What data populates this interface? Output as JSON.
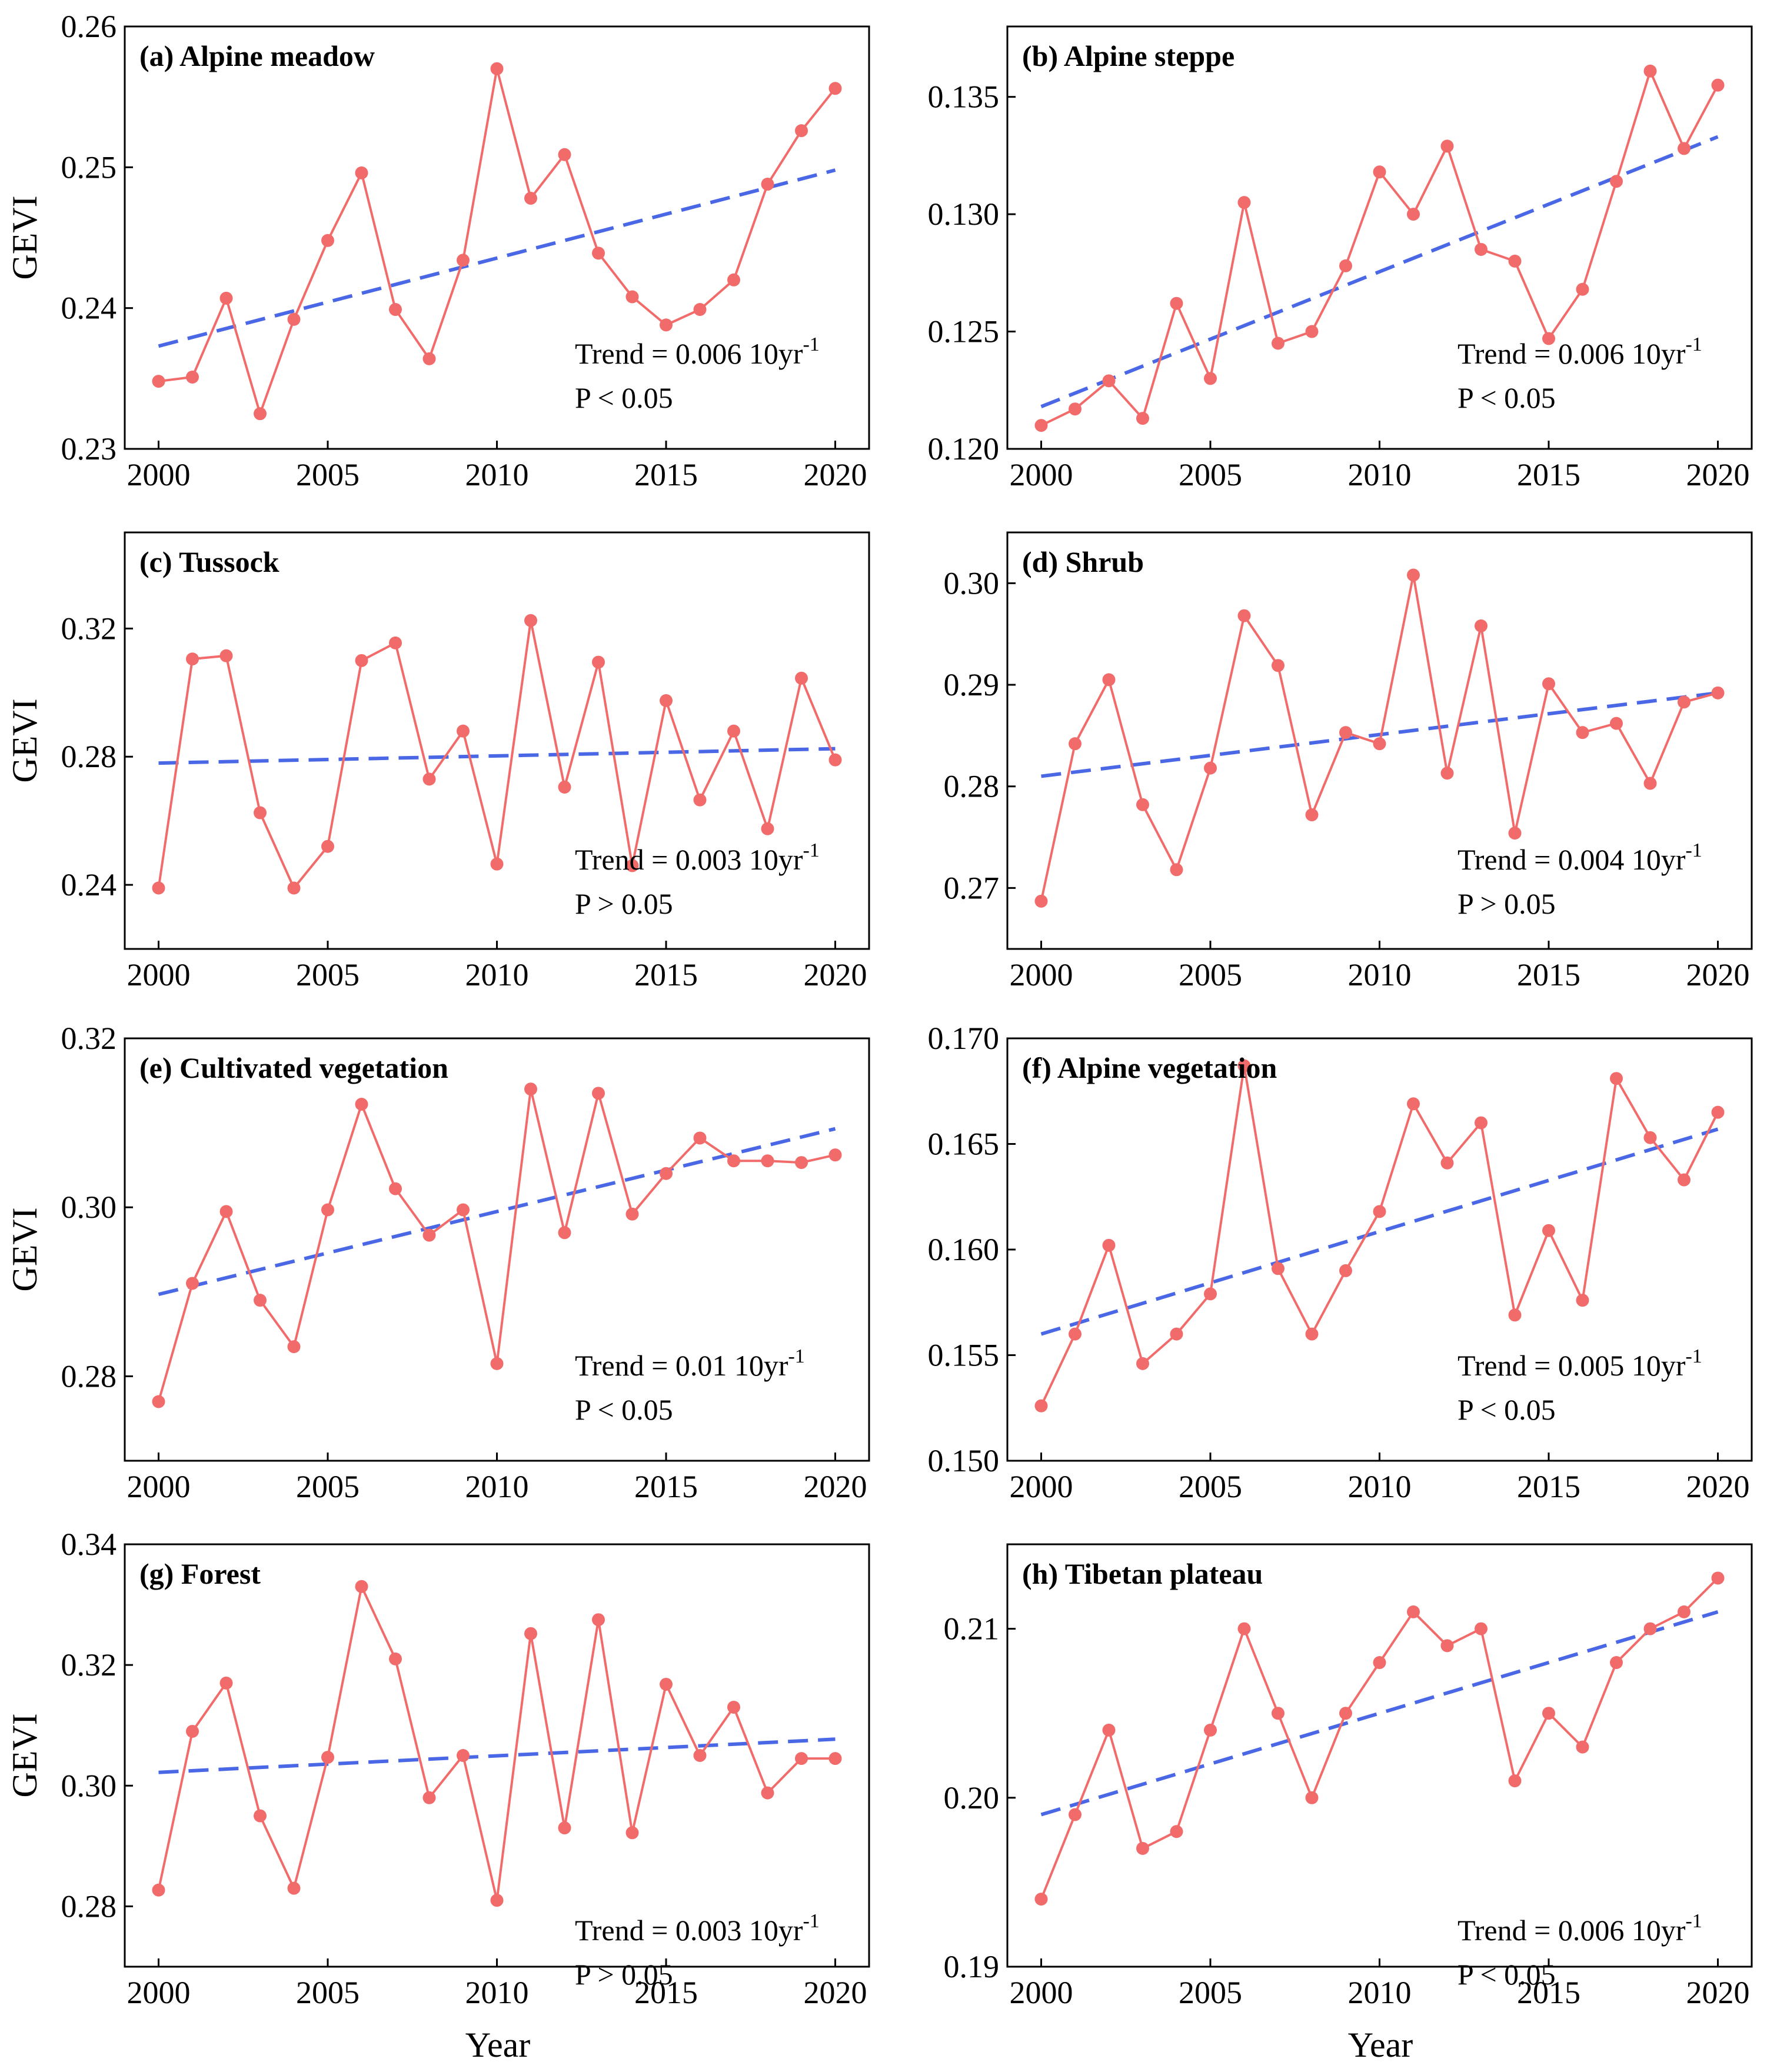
{
  "colors": {
    "series": "#f26b6b",
    "trend": "#4a68e6",
    "axis": "#000000"
  },
  "common": {
    "xlabel": "Year",
    "ylabel": "GEVI",
    "xticks": [
      2000,
      2005,
      2010,
      2015,
      2020
    ],
    "xlim": [
      1999,
      2021
    ],
    "years": [
      2000,
      2001,
      2002,
      2003,
      2004,
      2005,
      2006,
      2007,
      2008,
      2009,
      2010,
      2011,
      2012,
      2013,
      2014,
      2015,
      2016,
      2017,
      2018,
      2019,
      2020
    ]
  },
  "chart_data": [
    {
      "type": "line",
      "title": "(a) Alpine meadow",
      "ylim": [
        0.23,
        0.26
      ],
      "yticks": [
        0.23,
        0.24,
        0.25,
        0.26
      ],
      "ytick_labels": [
        "0.23",
        "0.24",
        "0.25",
        "0.26"
      ],
      "values": [
        0.2348,
        0.2351,
        0.2407,
        0.2325,
        0.2392,
        0.2448,
        0.2496,
        0.2399,
        0.2364,
        0.2434,
        0.257,
        0.2478,
        0.2509,
        0.2439,
        0.2408,
        0.2388,
        0.2399,
        0.242,
        0.2488,
        0.2526,
        0.2556
      ],
      "trend": {
        "start": 0.2373,
        "end": 0.2498
      },
      "trend_text": "Trend = 0.006 10yr",
      "trend_exp": "-1",
      "p_text": "P < 0.05"
    },
    {
      "type": "line",
      "title": "(b) Alpine steppe",
      "ylim": [
        0.12,
        0.138
      ],
      "yticks": [
        0.12,
        0.125,
        0.13,
        0.135
      ],
      "ytick_labels": [
        "0.120",
        "0.125",
        "0.130",
        "0.135"
      ],
      "values": [
        0.121,
        0.1217,
        0.1229,
        0.1213,
        0.1262,
        0.123,
        0.1305,
        0.1245,
        0.125,
        0.1278,
        0.1318,
        0.13,
        0.1329,
        0.1285,
        0.128,
        0.1247,
        0.1268,
        0.1314,
        0.1361,
        0.1328,
        0.1355
      ],
      "trend": {
        "start": 0.1218,
        "end": 0.1333
      },
      "trend_text": "Trend = 0.006 10yr",
      "trend_exp": "-1",
      "p_text": "P < 0.05"
    },
    {
      "type": "line",
      "title": "(c) Tussock",
      "ylim": [
        0.22,
        0.35
      ],
      "yticks": [
        0.24,
        0.28,
        0.32
      ],
      "ytick_labels": [
        "0.24",
        "0.28",
        "0.32"
      ],
      "values": [
        0.239,
        0.3105,
        0.3115,
        0.2625,
        0.239,
        0.252,
        0.31,
        0.3155,
        0.273,
        0.288,
        0.2465,
        0.3225,
        0.2705,
        0.3095,
        0.246,
        0.2975,
        0.2665,
        0.288,
        0.2575,
        0.3045,
        0.279
      ],
      "trend": {
        "start": 0.278,
        "end": 0.2825
      },
      "trend_text": "Trend = 0.003 10yr",
      "trend_exp": "-1",
      "p_text": "P > 0.05"
    },
    {
      "type": "line",
      "title": "(d) Shrub",
      "ylim": [
        0.264,
        0.305
      ],
      "yticks": [
        0.27,
        0.28,
        0.29,
        0.3
      ],
      "ytick_labels": [
        "0.27",
        "0.28",
        "0.29",
        "0.30"
      ],
      "values": [
        0.2687,
        0.2842,
        0.2905,
        0.2782,
        0.2718,
        0.2818,
        0.2968,
        0.2919,
        0.2772,
        0.2853,
        0.2842,
        0.3008,
        0.2813,
        0.2958,
        0.2754,
        0.2901,
        0.2853,
        0.2862,
        0.2803,
        0.2883,
        0.2892
      ],
      "trend": {
        "start": 0.281,
        "end": 0.2892
      },
      "trend_text": "Trend = 0.004 10yr",
      "trend_exp": "-1",
      "p_text": "P > 0.05"
    },
    {
      "type": "line",
      "title": "(e) Cultivated vegetation",
      "ylim": [
        0.27,
        0.32
      ],
      "yticks": [
        0.28,
        0.3,
        0.32
      ],
      "ytick_labels": [
        "0.28",
        "0.30",
        "0.32"
      ],
      "values": [
        0.277,
        0.291,
        0.2995,
        0.289,
        0.2835,
        0.2997,
        0.3122,
        0.3022,
        0.2967,
        0.2997,
        0.2815,
        0.314,
        0.297,
        0.3135,
        0.2992,
        0.304,
        0.3082,
        0.3055,
        0.3055,
        0.3053,
        0.3062
      ],
      "trend": {
        "start": 0.2897,
        "end": 0.3093
      },
      "trend_text": "Trend = 0.01 10yr",
      "trend_exp": "-1",
      "p_text": "P < 0.05"
    },
    {
      "type": "line",
      "title": "(f) Alpine vegetation",
      "ylim": [
        0.15,
        0.17
      ],
      "yticks": [
        0.15,
        0.155,
        0.16,
        0.165,
        0.17
      ],
      "ytick_labels": [
        "0.150",
        "0.155",
        "0.160",
        "0.165",
        "0.170"
      ],
      "values": [
        0.1526,
        0.156,
        0.1602,
        0.1546,
        0.156,
        0.1579,
        0.1687,
        0.1591,
        0.156,
        0.159,
        0.1618,
        0.1669,
        0.1641,
        0.166,
        0.1569,
        0.1609,
        0.1576,
        0.1681,
        0.1653,
        0.1633,
        0.1665
      ],
      "trend": {
        "start": 0.156,
        "end": 0.1657
      },
      "trend_text": "Trend = 0.005 10yr",
      "trend_exp": "-1",
      "p_text": "P < 0.05"
    },
    {
      "type": "line",
      "title": "(g) Forest",
      "ylim": [
        0.27,
        0.34
      ],
      "yticks": [
        0.28,
        0.3,
        0.32,
        0.34
      ],
      "ytick_labels": [
        "0.28",
        "0.30",
        "0.32",
        "0.34"
      ],
      "values": [
        0.2827,
        0.309,
        0.317,
        0.295,
        0.283,
        0.3047,
        0.333,
        0.321,
        0.298,
        0.305,
        0.281,
        0.3252,
        0.293,
        0.3275,
        0.2922,
        0.3168,
        0.305,
        0.313,
        0.2988,
        0.3045,
        0.3045
      ],
      "trend": {
        "start": 0.3022,
        "end": 0.3077
      },
      "trend_text": "Trend = 0.003 10yr",
      "trend_exp": "-1",
      "p_text": "P > 0.05"
    },
    {
      "type": "line",
      "title": "(h) Tibetan plateau",
      "ylim": [
        0.19,
        0.215
      ],
      "yticks": [
        0.19,
        0.2,
        0.21
      ],
      "ytick_labels": [
        "0.19",
        "0.20",
        "0.21"
      ],
      "values": [
        0.194,
        0.199,
        0.204,
        0.197,
        0.198,
        0.204,
        0.21,
        0.205,
        0.2,
        0.205,
        0.208,
        0.211,
        0.209,
        0.21,
        0.201,
        0.205,
        0.203,
        0.208,
        0.21,
        0.211,
        0.213
      ],
      "trend": {
        "start": 0.199,
        "end": 0.211
      },
      "trend_text": "Trend = 0.006 10yr",
      "trend_exp": "-1",
      "p_text": "P < 0.05"
    }
  ]
}
